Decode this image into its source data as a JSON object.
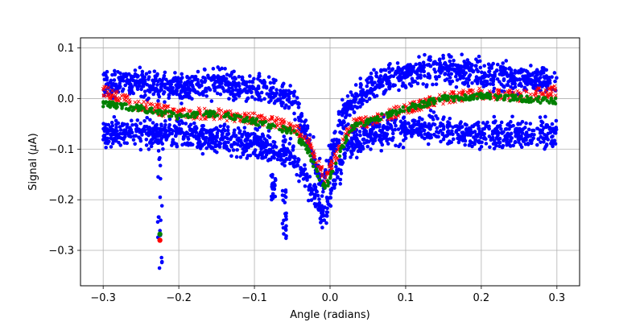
{
  "chart_data": {
    "type": "scatter",
    "title": "",
    "xlabel": "Angle (radians)",
    "ylabel_prefix": "Signal (",
    "ylabel_mu": "μ",
    "ylabel_suffix": "A)",
    "xlim": [
      -0.33,
      0.33
    ],
    "ylim": [
      -0.37,
      0.12
    ],
    "xticks": [
      -0.3,
      -0.2,
      -0.1,
      0.0,
      0.1,
      0.2,
      0.3
    ],
    "xtick_labels": [
      "−0.3",
      "−0.2",
      "−0.1",
      "0.0",
      "0.1",
      "0.2",
      "0.3"
    ],
    "yticks": [
      -0.3,
      -0.2,
      -0.1,
      0.0,
      0.1
    ],
    "ytick_labels": [
      "−0.3",
      "−0.2",
      "−0.1",
      "0.0",
      "0.1"
    ],
    "grid": true,
    "legend": false,
    "series": [
      {
        "color": "#0000ff",
        "marker": "dot",
        "bands": [
          {
            "x": [
              -0.3,
              -0.25,
              -0.2,
              -0.15,
              -0.1,
              -0.05,
              -0.02,
              -0.01,
              0.0,
              0.02,
              0.05,
              0.1,
              0.15,
              0.2,
              0.25,
              0.3
            ],
            "y": [
              0.03,
              0.03,
              0.02,
              0.03,
              0.02,
              0.0,
              -0.12,
              -0.17,
              -0.12,
              -0.02,
              0.02,
              0.05,
              0.06,
              0.05,
              0.04,
              0.03
            ]
          },
          {
            "x": [
              -0.3,
              -0.25,
              -0.2,
              -0.15,
              -0.1,
              -0.05,
              -0.02,
              -0.01,
              0.0,
              0.02,
              0.05,
              0.1,
              0.15,
              0.2,
              0.25,
              0.3
            ],
            "y": [
              -0.07,
              -0.07,
              -0.07,
              -0.08,
              -0.09,
              -0.11,
              -0.19,
              -0.24,
              -0.2,
              -0.1,
              -0.07,
              -0.06,
              -0.06,
              -0.07,
              -0.07,
              -0.07
            ]
          }
        ],
        "outliers": [
          {
            "x": -0.225,
            "y_from": -0.06,
            "y_to": -0.35
          },
          {
            "x": -0.06,
            "y_from": -0.18,
            "y_to": -0.28
          },
          {
            "x": -0.075,
            "y_from": -0.15,
            "y_to": -0.2
          }
        ]
      },
      {
        "color": "#ff0000",
        "marker": "x",
        "x": [
          -0.3,
          -0.25,
          -0.2,
          -0.15,
          -0.1,
          -0.05,
          -0.03,
          -0.015,
          -0.005,
          0.0,
          0.015,
          0.03,
          0.05,
          0.1,
          0.15,
          0.2,
          0.25,
          0.3
        ],
        "y": [
          0.015,
          -0.015,
          -0.03,
          -0.03,
          -0.04,
          -0.055,
          -0.08,
          -0.13,
          -0.16,
          -0.14,
          -0.09,
          -0.05,
          -0.045,
          -0.02,
          0.0,
          0.01,
          0.005,
          0.015
        ]
      },
      {
        "color": "#008000",
        "marker": "dot",
        "x": [
          -0.3,
          -0.25,
          -0.2,
          -0.15,
          -0.1,
          -0.05,
          -0.03,
          -0.015,
          -0.005,
          0.0,
          0.015,
          0.03,
          0.05,
          0.1,
          0.15,
          0.2,
          0.25,
          0.3
        ],
        "y": [
          -0.01,
          -0.02,
          -0.035,
          -0.03,
          -0.045,
          -0.065,
          -0.1,
          -0.155,
          -0.175,
          -0.155,
          -0.1,
          -0.055,
          -0.045,
          -0.02,
          0.0,
          0.005,
          0.0,
          -0.005
        ]
      }
    ],
    "annotations": [
      {
        "x": -0.225,
        "y": -0.28,
        "color": "#ff0000"
      },
      {
        "x": -0.225,
        "y": -0.268,
        "color": "#008000"
      }
    ]
  }
}
